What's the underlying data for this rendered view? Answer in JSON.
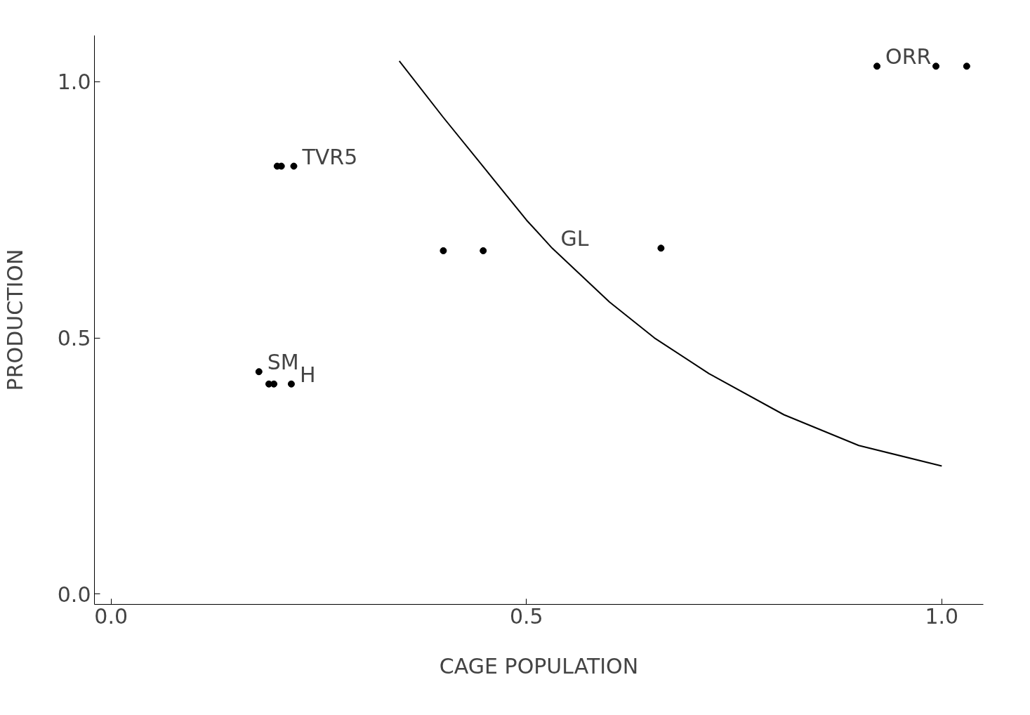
{
  "chart_data": {
    "type": "scatter",
    "xlabel": "CAGE POPULATION",
    "ylabel": "PRODUCTION",
    "xlim": [
      -0.02,
      1.05
    ],
    "ylim": [
      -0.02,
      1.09
    ],
    "xticks": [
      {
        "value": 0.0,
        "label": "0.0"
      },
      {
        "value": 0.5,
        "label": "0.5"
      },
      {
        "value": 1.0,
        "label": "1.0"
      }
    ],
    "yticks": [
      {
        "value": 0.0,
        "label": "0.0"
      },
      {
        "value": 0.5,
        "label": "0.5"
      },
      {
        "value": 1.0,
        "label": "1.0"
      }
    ],
    "grid": false,
    "series": [
      {
        "color": "#000000",
        "marker": "circle",
        "x": [
          0.2,
          0.205,
          0.22,
          0.178,
          0.19,
          0.196,
          0.217,
          0.4,
          0.448,
          0.662,
          0.922,
          0.993,
          1.03
        ],
        "values": [
          0.835,
          0.835,
          0.835,
          0.434,
          0.41,
          0.41,
          0.41,
          0.67,
          0.67,
          0.675,
          1.03,
          1.03,
          1.03
        ]
      },
      {
        "type": "line",
        "color": "#000000",
        "line_style": "solid",
        "x": [
          0.347,
          0.4,
          0.45,
          0.5,
          0.531,
          0.6,
          0.654,
          0.72,
          0.81,
          0.9,
          1.0
        ],
        "values": [
          1.04,
          0.93,
          0.83,
          0.73,
          0.675,
          0.57,
          0.5,
          0.43,
          0.35,
          0.29,
          0.25
        ]
      }
    ],
    "annotations": [
      {
        "text": "TVR5",
        "x": 0.22,
        "y": 0.835
      },
      {
        "text": "SM",
        "x": 0.178,
        "y": 0.434
      },
      {
        "text": "H",
        "x": 0.217,
        "y": 0.41
      },
      {
        "text": "GL",
        "x": 0.531,
        "y": 0.675
      },
      {
        "text": "ORR",
        "x": 0.922,
        "y": 1.03
      }
    ]
  }
}
